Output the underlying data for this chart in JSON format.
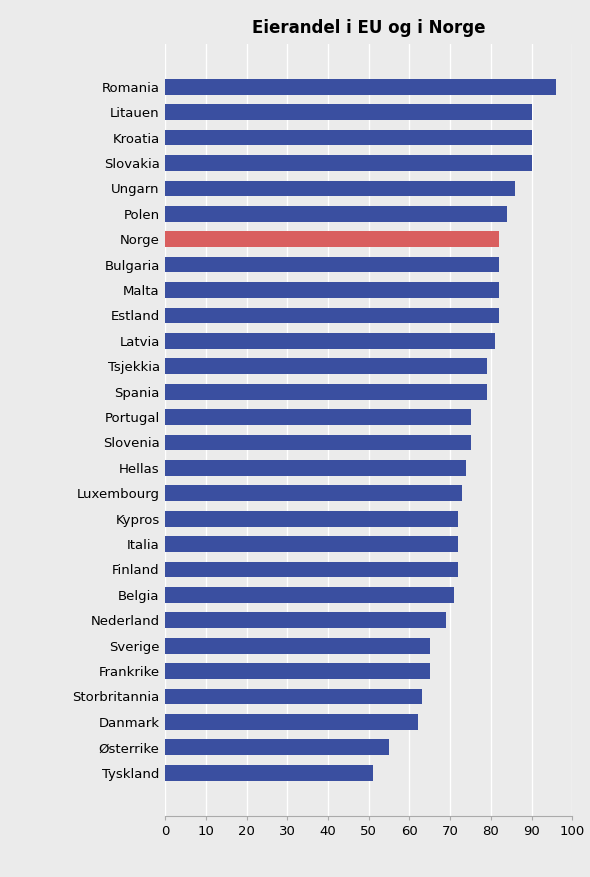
{
  "title": "Eierandel i EU og i Norge",
  "categories": [
    "Romania",
    "Litauen",
    "Kroatia",
    "Slovakia",
    "Ungarn",
    "Polen",
    "Norge",
    "Bulgaria",
    "Malta",
    "Estland",
    "Latvia",
    "Tsjekkia",
    "Spania",
    "Portugal",
    "Slovenia",
    "Hellas",
    "Luxembourg",
    "Kypros",
    "Italia",
    "Finland",
    "Belgia",
    "Nederland",
    "Sverige",
    "Frankrike",
    "Storbritannia",
    "Danmark",
    "Østerrike",
    "Tyskland"
  ],
  "values": [
    96,
    90,
    90,
    90,
    86,
    84,
    82,
    82,
    82,
    82,
    81,
    79,
    79,
    75,
    75,
    74,
    73,
    72,
    72,
    72,
    71,
    69,
    65,
    65,
    63,
    62,
    55,
    51
  ],
  "colors": [
    "#3a4fa0",
    "#3a4fa0",
    "#3a4fa0",
    "#3a4fa0",
    "#3a4fa0",
    "#3a4fa0",
    "#d95f5f",
    "#3a4fa0",
    "#3a4fa0",
    "#3a4fa0",
    "#3a4fa0",
    "#3a4fa0",
    "#3a4fa0",
    "#3a4fa0",
    "#3a4fa0",
    "#3a4fa0",
    "#3a4fa0",
    "#3a4fa0",
    "#3a4fa0",
    "#3a4fa0",
    "#3a4fa0",
    "#3a4fa0",
    "#3a4fa0",
    "#3a4fa0",
    "#3a4fa0",
    "#3a4fa0",
    "#3a4fa0",
    "#3a4fa0"
  ],
  "xlim": [
    0,
    100
  ],
  "xticks": [
    0,
    10,
    20,
    30,
    40,
    50,
    60,
    70,
    80,
    90,
    100
  ],
  "background_color": "#ebebeb",
  "bar_height": 0.62,
  "title_fontsize": 12,
  "tick_fontsize": 9.5,
  "label_fontsize": 9.5
}
